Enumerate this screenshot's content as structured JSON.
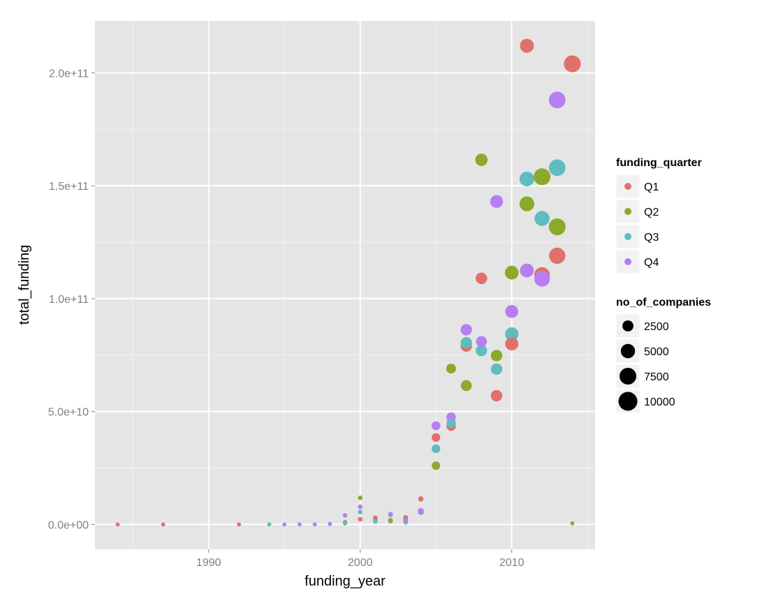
{
  "chart_data": {
    "type": "scatter",
    "title": "",
    "xlabel": "funding_year",
    "ylabel": "total_funding",
    "xlim": [
      1982.5,
      2015.5
    ],
    "ylim": [
      -11000000000,
      223000000000
    ],
    "xticks": [
      1990,
      2000,
      2010
    ],
    "xtick_labels": [
      "1990",
      "2000",
      "2010"
    ],
    "yticks": [
      0,
      50000000000,
      100000000000,
      150000000000,
      200000000000
    ],
    "ytick_labels": [
      "0.0e+00",
      "5.0e+10",
      "1.0e+11",
      "1.5e+11",
      "2.0e+11"
    ],
    "grid": true,
    "legend_position": "right",
    "color_legend": {
      "title": "funding_quarter",
      "entries": [
        {
          "label": "Q1",
          "color": "#e1706a"
        },
        {
          "label": "Q2",
          "color": "#8aaa29"
        },
        {
          "label": "Q3",
          "color": "#5fbcbf"
        },
        {
          "label": "Q4",
          "color": "#b57ff2"
        }
      ]
    },
    "size_legend": {
      "title": "no_of_companies",
      "entries": [
        {
          "label": "2500",
          "value": 2500
        },
        {
          "label": "5000",
          "value": 5000
        },
        {
          "label": "7500",
          "value": 7500
        },
        {
          "label": "10000",
          "value": 10000
        }
      ]
    },
    "series": [
      {
        "name": "Q1",
        "color": "#e1706a",
        "points": [
          {
            "x": 1984,
            "y": 0,
            "size": 30
          },
          {
            "x": 1987,
            "y": 0,
            "size": 30
          },
          {
            "x": 1992,
            "y": 0,
            "size": 30
          },
          {
            "x": 2000,
            "y": 2300000000,
            "size": 80
          },
          {
            "x": 2001,
            "y": 2900000000,
            "size": 100
          },
          {
            "x": 2002,
            "y": 1500000000,
            "size": 110
          },
          {
            "x": 2003,
            "y": 3000000000,
            "size": 130
          },
          {
            "x": 2004,
            "y": 11300000000,
            "size": 160
          },
          {
            "x": 2005,
            "y": 38500000000,
            "size": 1200
          },
          {
            "x": 2006,
            "y": 43500000000,
            "size": 1500
          },
          {
            "x": 2007,
            "y": 79000000000,
            "size": 2700
          },
          {
            "x": 2008,
            "y": 109000000000,
            "size": 2900
          },
          {
            "x": 2009,
            "y": 57000000000,
            "size": 2800
          },
          {
            "x": 2010,
            "y": 80000000000,
            "size": 4100
          },
          {
            "x": 2011,
            "y": 212000000000,
            "size": 4700
          },
          {
            "x": 2012,
            "y": 110500000000,
            "size": 6300
          },
          {
            "x": 2013,
            "y": 119000000000,
            "size": 7000
          },
          {
            "x": 2014,
            "y": 204000000000,
            "size": 7700
          }
        ]
      },
      {
        "name": "Q2",
        "color": "#8aaa29",
        "points": [
          {
            "x": 1999,
            "y": 1000000000,
            "size": 60
          },
          {
            "x": 2000,
            "y": 11800000000,
            "size": 80
          },
          {
            "x": 2001,
            "y": 1700000000,
            "size": 80
          },
          {
            "x": 2002,
            "y": 1800000000,
            "size": 100
          },
          {
            "x": 2003,
            "y": 2200000000,
            "size": 110
          },
          {
            "x": 2005,
            "y": 26000000000,
            "size": 1100
          },
          {
            "x": 2006,
            "y": 69000000000,
            "size": 1800
          },
          {
            "x": 2007,
            "y": 61500000000,
            "size": 2400
          },
          {
            "x": 2008,
            "y": 161500000000,
            "size": 3400
          },
          {
            "x": 2009,
            "y": 74800000000,
            "size": 2800
          },
          {
            "x": 2010,
            "y": 111500000000,
            "size": 4500
          },
          {
            "x": 2011,
            "y": 142000000000,
            "size": 5500
          },
          {
            "x": 2012,
            "y": 154000000000,
            "size": 7600
          },
          {
            "x": 2013,
            "y": 131800000000,
            "size": 7600
          },
          {
            "x": 2014,
            "y": 500000000,
            "size": 30
          }
        ]
      },
      {
        "name": "Q3",
        "color": "#5fbcbf",
        "points": [
          {
            "x": 1994,
            "y": 0,
            "size": 30
          },
          {
            "x": 1999,
            "y": 500000000,
            "size": 50
          },
          {
            "x": 2000,
            "y": 5500000000,
            "size": 80
          },
          {
            "x": 2001,
            "y": 1300000000,
            "size": 80
          },
          {
            "x": 2002,
            "y": 4500000000,
            "size": 110
          },
          {
            "x": 2003,
            "y": 1000000000,
            "size": 110
          },
          {
            "x": 2004,
            "y": 5500000000,
            "size": 300
          },
          {
            "x": 2005,
            "y": 33500000000,
            "size": 1200
          },
          {
            "x": 2006,
            "y": 44800000000,
            "size": 1500
          },
          {
            "x": 2007,
            "y": 80500000000,
            "size": 2700
          },
          {
            "x": 2008,
            "y": 77000000000,
            "size": 2700
          },
          {
            "x": 2009,
            "y": 68800000000,
            "size": 2700
          },
          {
            "x": 2010,
            "y": 84300000000,
            "size": 4300
          },
          {
            "x": 2011,
            "y": 153000000000,
            "size": 5400
          },
          {
            "x": 2012,
            "y": 135500000000,
            "size": 5700
          },
          {
            "x": 2013,
            "y": 158000000000,
            "size": 7300
          }
        ]
      },
      {
        "name": "Q4",
        "color": "#b57ff2",
        "points": [
          {
            "x": 1995,
            "y": 0,
            "size": 30
          },
          {
            "x": 1996,
            "y": 0,
            "size": 30
          },
          {
            "x": 1997,
            "y": 0,
            "size": 30
          },
          {
            "x": 1998,
            "y": 200000000,
            "size": 40
          },
          {
            "x": 1999,
            "y": 4000000000,
            "size": 60
          },
          {
            "x": 2000,
            "y": 7800000000,
            "size": 80
          },
          {
            "x": 2002,
            "y": 4300000000,
            "size": 100
          },
          {
            "x": 2003,
            "y": 1800000000,
            "size": 110
          },
          {
            "x": 2004,
            "y": 6000000000,
            "size": 300
          },
          {
            "x": 2005,
            "y": 43700000000,
            "size": 1300
          },
          {
            "x": 2006,
            "y": 47500000000,
            "size": 1600
          },
          {
            "x": 2007,
            "y": 86200000000,
            "size": 2700
          },
          {
            "x": 2008,
            "y": 81000000000,
            "size": 2400
          },
          {
            "x": 2009,
            "y": 143000000000,
            "size": 3800
          },
          {
            "x": 2010,
            "y": 94300000000,
            "size": 3900
          },
          {
            "x": 2011,
            "y": 112500000000,
            "size": 4600
          },
          {
            "x": 2012,
            "y": 108800000000,
            "size": 6300
          },
          {
            "x": 2013,
            "y": 188000000000,
            "size": 7400
          }
        ]
      }
    ]
  }
}
